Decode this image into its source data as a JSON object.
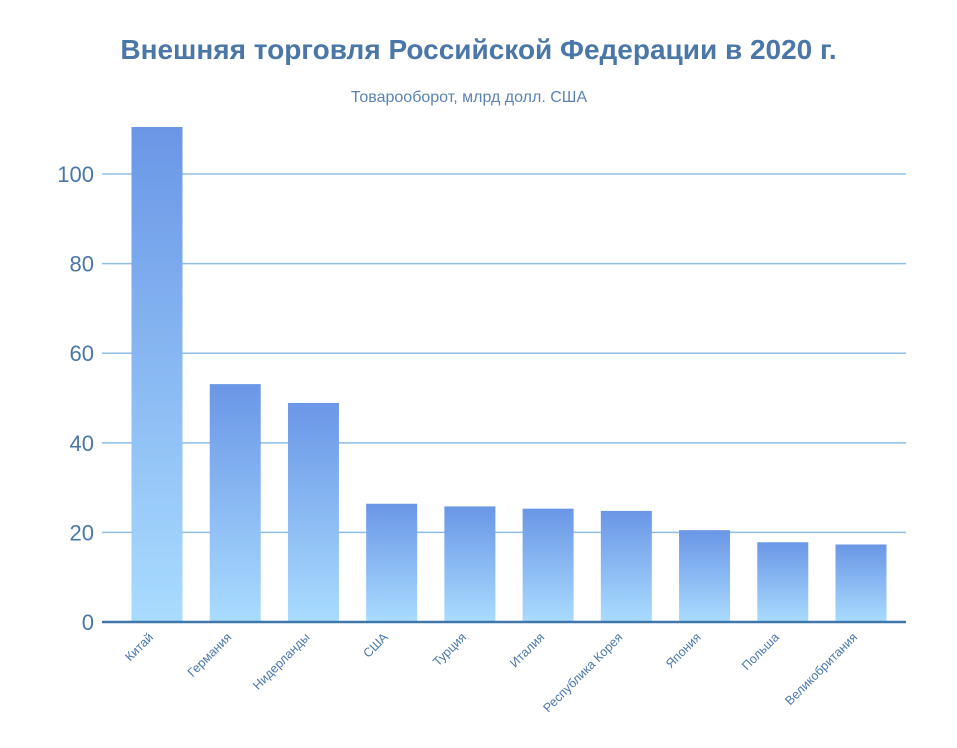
{
  "chart_data": {
    "type": "bar",
    "title": "Внешняя торговля Российской Федерации в 2020 г.",
    "subtitle": "Товарооборот, млрд долл. США",
    "xlabel": "",
    "ylabel": "",
    "categories": [
      "Китай",
      "Германия",
      "Нидерланды",
      "США",
      "Турция",
      "Италия",
      "Республика Корея",
      "Япония",
      "Польша",
      "Великобритания"
    ],
    "values": [
      110.5,
      53.1,
      48.9,
      26.4,
      25.8,
      25.3,
      24.8,
      20.5,
      17.8,
      17.3
    ],
    "ylim": [
      0,
      110.5
    ],
    "yticks": [
      "0",
      "20",
      "40",
      "60",
      "80",
      "100"
    ],
    "grid": true,
    "legend": "none",
    "colors": {
      "bar_top": "#6a96e6",
      "bar_bottom": "#a9dcff",
      "grid": "#8fbde6",
      "axis": "#3f78a8",
      "text": "#4a77a8"
    }
  }
}
